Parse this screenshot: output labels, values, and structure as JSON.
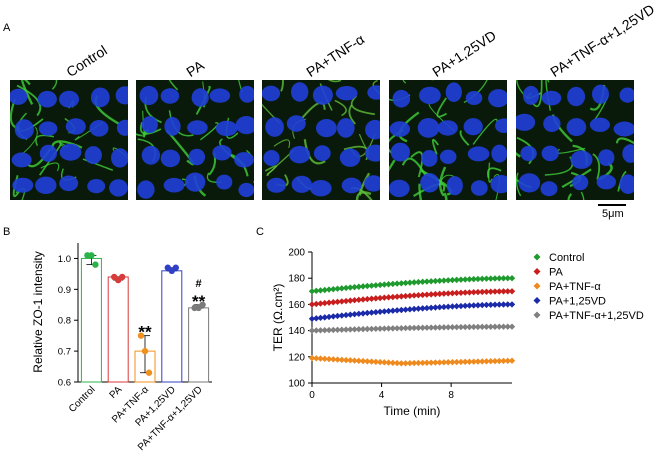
{
  "figure": {
    "panel_a_letter": "A",
    "panel_b_letter": "B",
    "panel_c_letter": "C",
    "micrographs": [
      {
        "label": "Control"
      },
      {
        "label": "PA"
      },
      {
        "label": "PA+TNF-α"
      },
      {
        "label": "PA+1,25VD"
      },
      {
        "label": "PA+TNF-α+1,25VD"
      }
    ],
    "scale_label": "5μm"
  },
  "chart_data": [
    {
      "type": "bar",
      "ylabel": "Relative ZO-1 intensity",
      "ylim": [
        0.6,
        1.05
      ],
      "yticks": [
        "1.0",
        "0.9",
        "0.8",
        "0.7",
        "0.6"
      ],
      "categories": [
        "Control",
        "PA",
        "PA+TNF-α",
        "PA+1,25VD",
        "PA+TNF-α+1,25VD"
      ],
      "values": [
        1.0,
        0.94,
        0.7,
        0.96,
        0.84
      ],
      "colors": [
        "#2bb34a",
        "#d93a3a",
        "#f0901e",
        "#3040c8",
        "#7a7a7a"
      ],
      "points": [
        [
          1.01,
          1.01,
          0.98
        ],
        [
          0.94,
          0.93,
          0.94
        ],
        [
          0.75,
          0.7,
          0.63
        ],
        [
          0.97,
          0.96,
          0.97
        ],
        [
          0.84,
          0.84,
          0.85
        ]
      ],
      "annotations": [
        "",
        "",
        "**",
        "",
        "#\n**"
      ]
    },
    {
      "type": "line",
      "xlabel": "Time (min)",
      "ylabel": "TER (Ω.cm²)",
      "xlim": [
        0,
        11.5
      ],
      "xticks": [
        "0",
        "4",
        "8"
      ],
      "ylim": [
        100,
        200
      ],
      "yticks": [
        "200",
        "180",
        "160",
        "140",
        "120",
        "100"
      ],
      "series": [
        {
          "name": "Control",
          "color": "#1e9a2e",
          "start": 170,
          "end": 180
        },
        {
          "name": "PA",
          "color": "#c81e1e",
          "start": 160,
          "end": 170
        },
        {
          "name": "PA+TNF-α",
          "color": "#ef8a1e",
          "start": 119,
          "end": 117,
          "dip": 115
        },
        {
          "name": "PA+1,25VD",
          "color": "#1a2aa8",
          "start": 149,
          "end": 160
        },
        {
          "name": "PA+TNF-α+1,25VD",
          "color": "#808080",
          "start": 140,
          "end": 143
        }
      ]
    }
  ]
}
